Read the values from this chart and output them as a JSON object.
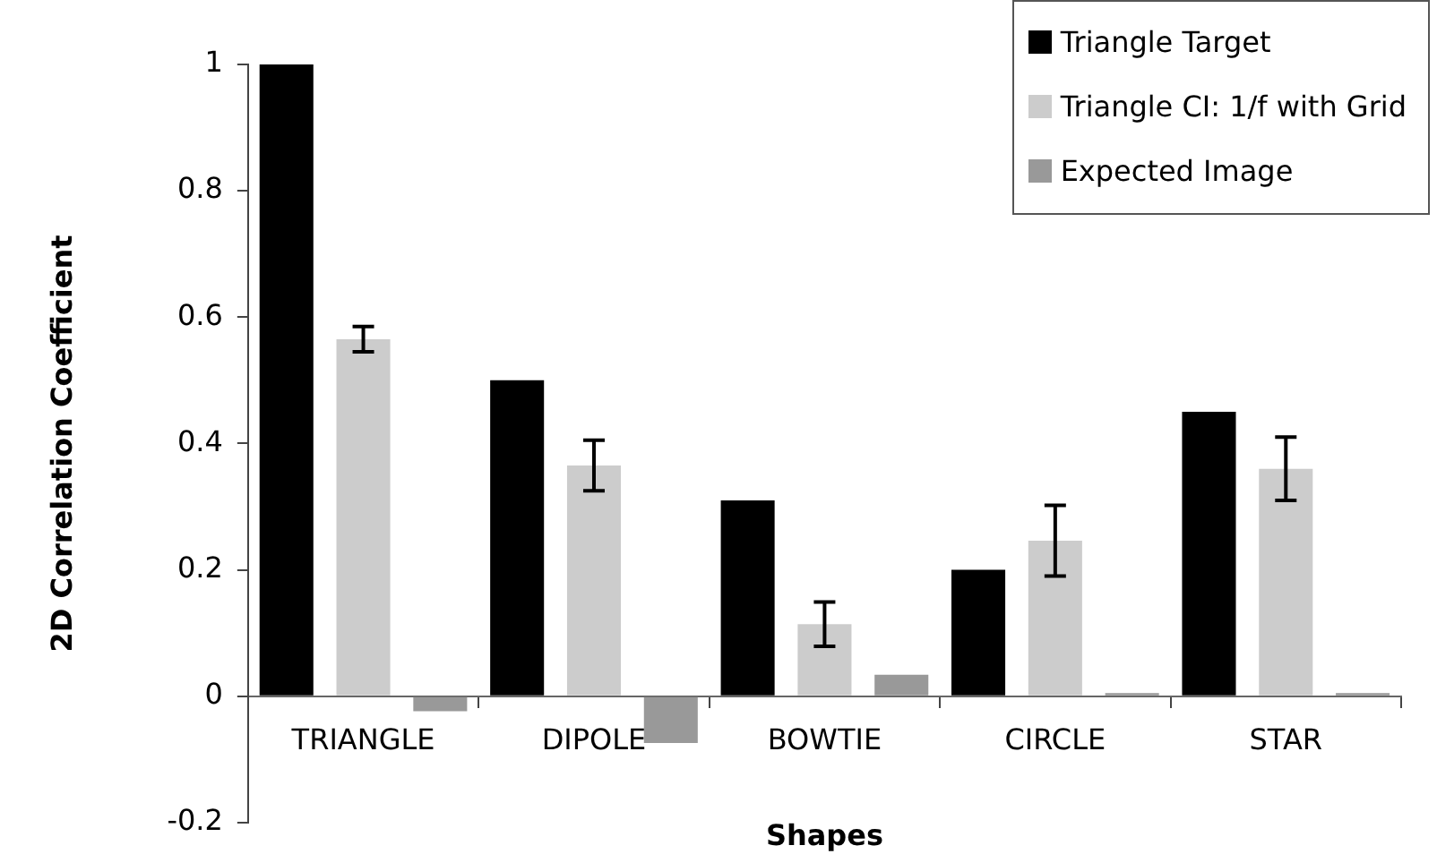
{
  "chart_data": {
    "type": "bar",
    "xlabel": "Shapes",
    "ylabel": "2D Correlation Coefficient",
    "categories": [
      "TRIANGLE",
      "DIPOLE",
      "BOWTIE",
      "CIRCLE",
      "STAR"
    ],
    "series": [
      {
        "name": "Triangle Target",
        "color": "#000000",
        "values": [
          1,
          0.5,
          0.31,
          0.2,
          0.45
        ]
      },
      {
        "name": "Triangle CI: 1/f with Grid",
        "color": "#cccccc",
        "values": [
          0.565,
          0.365,
          0.114,
          0.246,
          0.36
        ],
        "errors": [
          0.02,
          0.04,
          0.035,
          0.056,
          0.05
        ]
      },
      {
        "name": "Expected Image",
        "color": "#999999",
        "values": [
          -0.024,
          -0.074,
          0.034,
          0.005,
          0.005
        ]
      }
    ],
    "ylim": [
      -0.2,
      1
    ],
    "yticks": [
      -0.2,
      0,
      0.2,
      0.4,
      0.6,
      0.8,
      1
    ],
    "grid": false,
    "legend": "top right"
  }
}
